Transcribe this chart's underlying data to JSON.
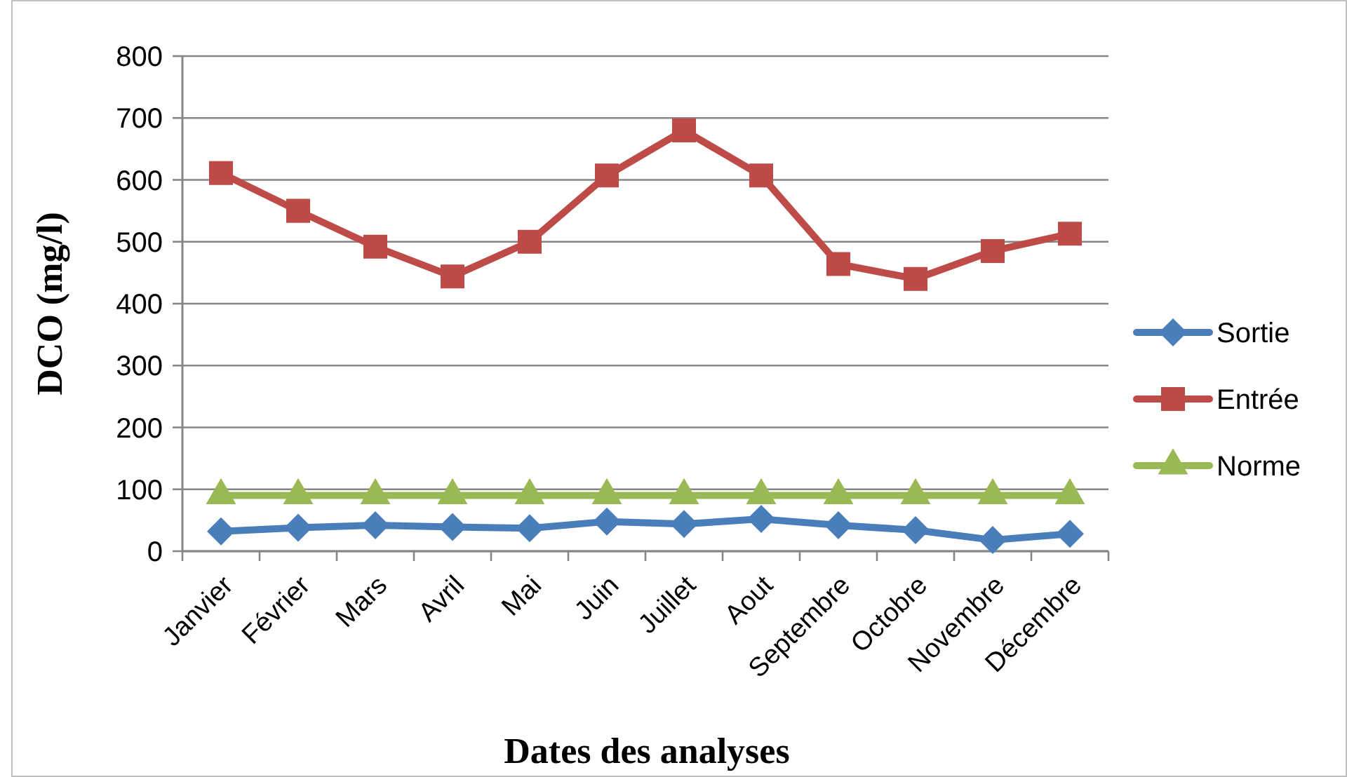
{
  "chart_data": {
    "type": "line",
    "xlabel": "Dates des analyses",
    "ylabel": "DCO (mg/l)",
    "categories": [
      "Janvier",
      "Février",
      "Mars",
      "Avril",
      "Mai",
      "Juin",
      "Juillet",
      "Aout",
      "Septembre",
      "Octobre",
      "Novembre",
      "Décembre"
    ],
    "series": [
      {
        "name": "Sortie",
        "color": "#4a7ebb",
        "marker": "diamond",
        "values": [
          32,
          38,
          42,
          39,
          37,
          48,
          44,
          52,
          42,
          34,
          18,
          28
        ]
      },
      {
        "name": "Entrée",
        "color": "#be4b48",
        "marker": "square",
        "values": [
          611,
          550,
          492,
          444,
          500,
          607,
          680,
          607,
          464,
          440,
          485,
          513
        ]
      },
      {
        "name": "Norme",
        "color": "#98b954",
        "marker": "triangle",
        "values": [
          90,
          90,
          90,
          90,
          90,
          90,
          90,
          90,
          90,
          90,
          90,
          90
        ]
      }
    ],
    "ylim": [
      0,
      800
    ],
    "yticks": [
      0,
      100,
      200,
      300,
      400,
      500,
      600,
      700,
      800
    ],
    "grid": "y",
    "legend": "right",
    "line_style": "solid"
  }
}
